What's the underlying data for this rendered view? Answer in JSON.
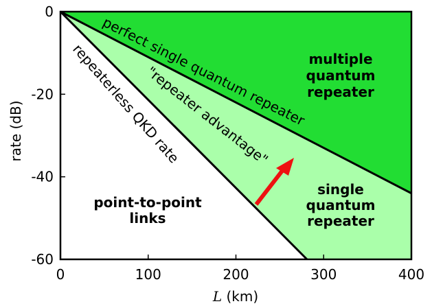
{
  "chart_data": {
    "type": "area",
    "xlabel_symbol": "L",
    "xlabel_unit": " (km)",
    "ylabel": "rate (dB)",
    "xlim": [
      0,
      400
    ],
    "ylim": [
      -60,
      0
    ],
    "x_ticks": [
      "0",
      "100",
      "200",
      "300",
      "400"
    ],
    "y_ticks": [
      "0",
      "-20",
      "-40",
      "-60"
    ],
    "grid": false,
    "series": [
      {
        "name": "repeaterless QKD rate",
        "x": [
          0,
          281
        ],
        "y": [
          0,
          -60
        ]
      },
      {
        "name": "perfect single quantum repeater",
        "x": [
          0,
          400
        ],
        "y": [
          0,
          -44
        ]
      }
    ],
    "regions": [
      {
        "label_lines": [
          "multiple",
          "quantum",
          "repeater"
        ],
        "color": "#22dd33"
      },
      {
        "label_lines": [
          "single",
          "quantum",
          "repeater"
        ],
        "color": "#aaffaa"
      },
      {
        "label_lines": [
          "point-to-point",
          "links"
        ],
        "color": "#ffffff"
      }
    ],
    "annotations": {
      "advantage": "\"repeater advantage\"",
      "arrow_color": "#ee1111"
    }
  }
}
